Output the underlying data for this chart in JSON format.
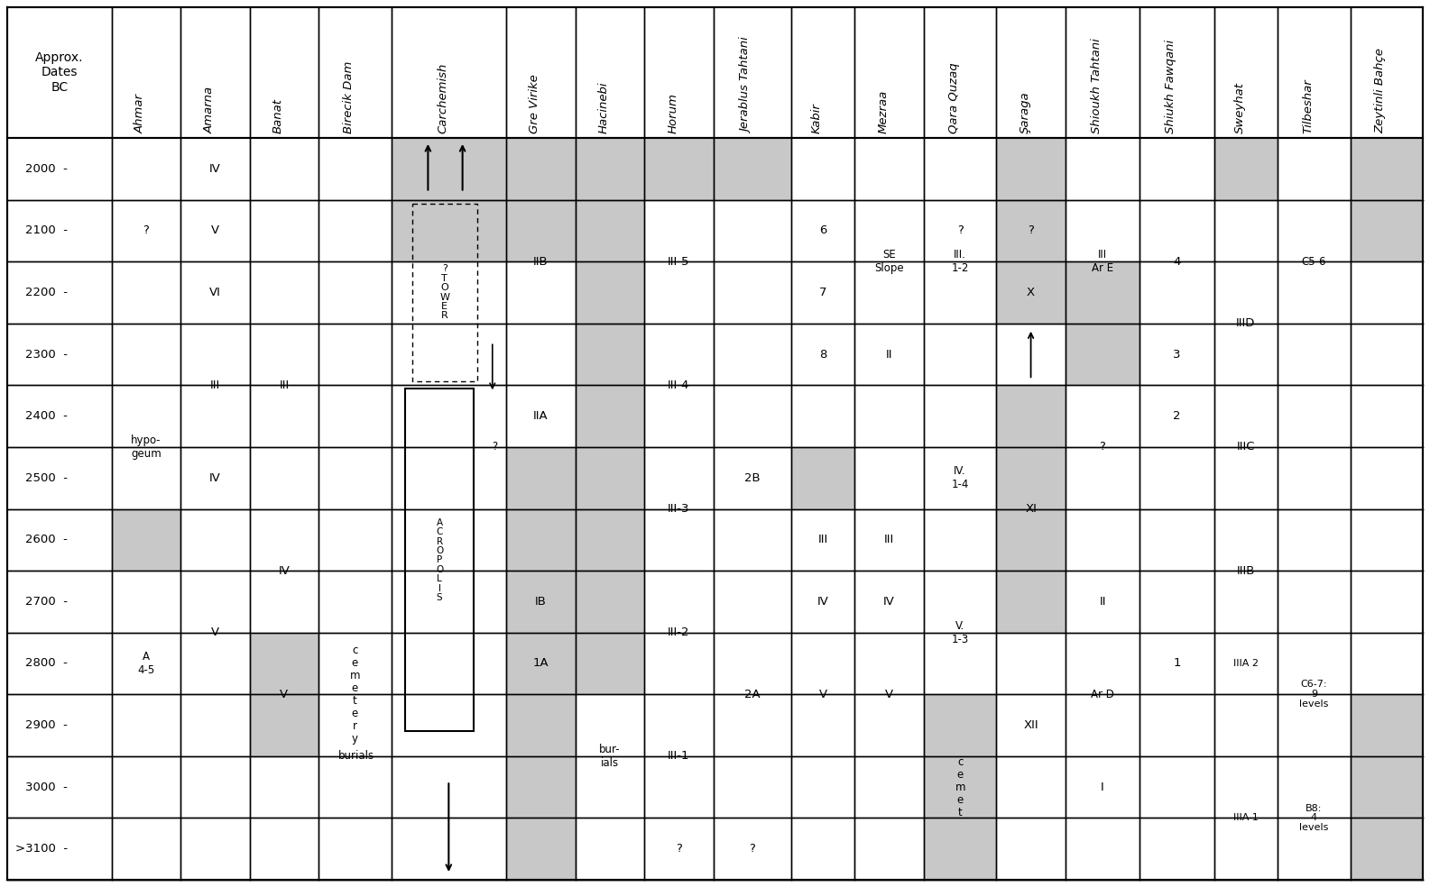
{
  "columns": [
    {
      "label": "Approx.\nDates\nBC",
      "italic": false
    },
    {
      "label": "Ahmar",
      "italic": true
    },
    {
      "label": "Amarna",
      "italic": true
    },
    {
      "label": "Banat",
      "italic": true
    },
    {
      "label": "Birecik Dam",
      "italic": true
    },
    {
      "label": "Carchemish",
      "italic": true
    },
    {
      "label": "Gre Virike",
      "italic": true
    },
    {
      "label": "Hacinebi",
      "italic": true
    },
    {
      "label": "Horum",
      "italic": true
    },
    {
      "label": "Jerablus Tahtani",
      "italic": true
    },
    {
      "label": "Kabir",
      "italic": true
    },
    {
      "label": "Mezraa",
      "italic": true
    },
    {
      "label": "Qara Quzaq",
      "italic": true
    },
    {
      "label": "Şaraga",
      "italic": true
    },
    {
      "label": "Shioukh Tahtani",
      "italic": true
    },
    {
      "label": "Shiukh Fawqani",
      "italic": true
    },
    {
      "label": "Sweyhat",
      "italic": true
    },
    {
      "label": "Tilbeshar",
      "italic": true
    },
    {
      "label": "Zeytinli Bahçe",
      "italic": true
    }
  ],
  "row_labels": [
    "2000",
    "2100",
    "2200",
    "2300",
    "2400",
    "2500",
    "2600",
    "2700",
    "2800",
    "2900",
    "3000",
    ">3100"
  ],
  "gray": "#c8c8c8",
  "white": "#ffffff",
  "black": "#000000"
}
